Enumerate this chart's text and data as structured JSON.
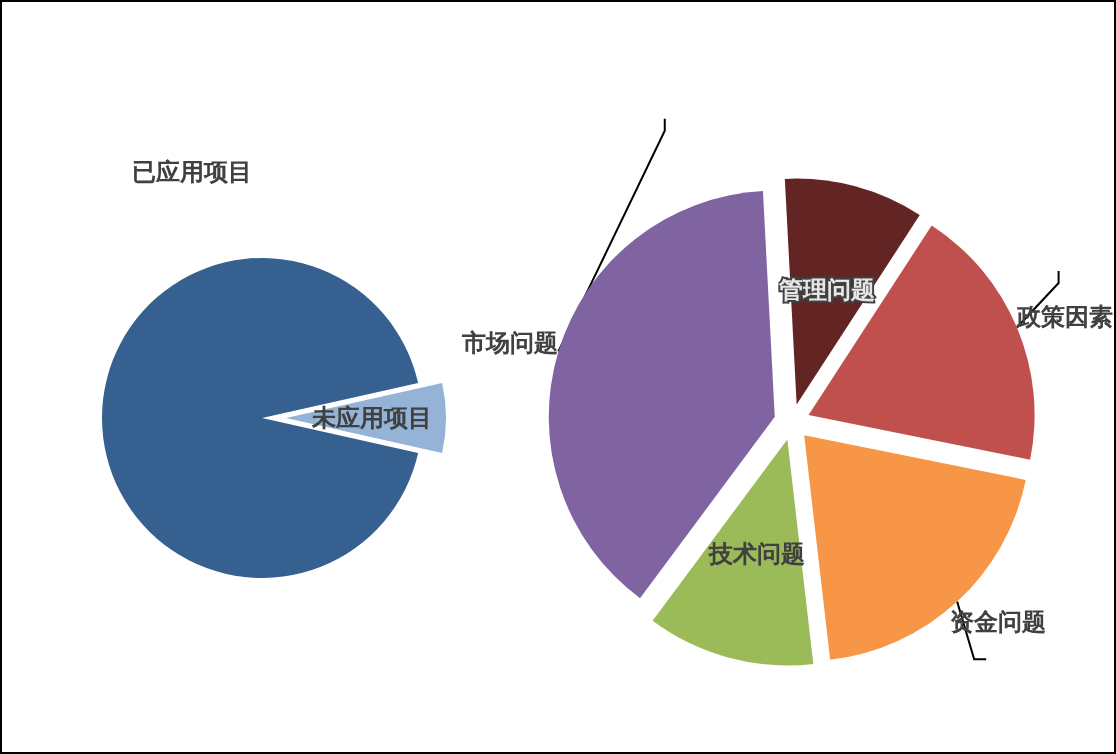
{
  "chart_data": [
    {
      "type": "pie",
      "categories": [
        "已应用项目",
        "未应用项目"
      ],
      "values": [
        93,
        7
      ],
      "colors": [
        "#36608f",
        "#95b3d7"
      ]
    },
    {
      "type": "pie",
      "categories": [
        "管理问题",
        "政策因素",
        "资金问题",
        "技术问题",
        "市场问题"
      ],
      "values": [
        10,
        19,
        20,
        12,
        39
      ],
      "colors": [
        "#632523",
        "#c0504d",
        "#f79646",
        "#9bbb59",
        "#8064a2"
      ]
    }
  ]
}
